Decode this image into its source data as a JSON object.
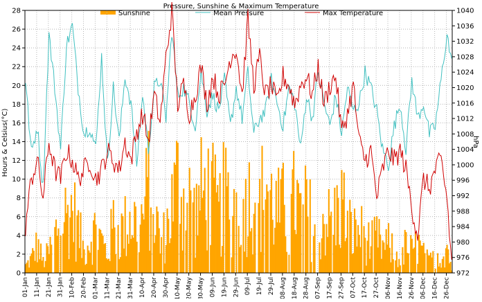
{
  "chart_data": {
    "type": "bar+line",
    "title": "Pressure, Sunshine & Maximum Temperature",
    "ylabel_left": "Hours & Celsius(°C)",
    "ylabel_right": "hPa",
    "ylim_left": [
      0,
      28
    ],
    "ylim_right": [
      972,
      1040
    ],
    "yticks_left": [
      "0",
      "2",
      "4",
      "6",
      "8",
      "10",
      "12",
      "14",
      "16",
      "18",
      "20",
      "22",
      "24",
      "26",
      "28"
    ],
    "yticks_right": [
      "972",
      "976",
      "980",
      "984",
      "988",
      "992",
      "996",
      "1000",
      "1004",
      "1008",
      "1012",
      "1016",
      "1020",
      "1024",
      "1028",
      "1032",
      "1036",
      "1040"
    ],
    "x_ticks": [
      "01-Jan",
      "11-Jan",
      "21-Jan",
      "31-Jan",
      "10-Feb",
      "20-Feb",
      "01-Mar",
      "11-Mar",
      "21-Mar",
      "31-Mar",
      "10-Apr",
      "20-Apr",
      "30-Apr",
      "10-May",
      "20-May",
      "30-May",
      "09-Jun",
      "19-Jun",
      "29-Jun",
      "09-Jul",
      "19-Jul",
      "29-Jul",
      "08-Aug",
      "18-Aug",
      "28-Aug",
      "07-Sep",
      "17-Sep",
      "27-Sep",
      "07-Oct",
      "17-Oct",
      "27-Oct",
      "06-Nov",
      "16-Nov",
      "26-Nov",
      "06-Dec",
      "16-Dec",
      "26-Dec"
    ],
    "n_days": 365,
    "grid": true,
    "legend": "top",
    "colors": {
      "sunshine": "#ffa500",
      "pressure": "#40c0c0",
      "temperature": "#d00000",
      "grid": "#b4b4b4"
    },
    "series": [
      {
        "name": "Sunshine",
        "axis": "left",
        "kind": "bar",
        "unit": "hours",
        "anchor_day": [
          0,
          5,
          10,
          15,
          20,
          25,
          30,
          35,
          40,
          45,
          50,
          55,
          60,
          65,
          70,
          75,
          80,
          85,
          90,
          95,
          100,
          105,
          110,
          115,
          120,
          125,
          130,
          135,
          140,
          145,
          150,
          155,
          160,
          165,
          170,
          175,
          180,
          185,
          190,
          195,
          200,
          205,
          210,
          215,
          220,
          225,
          230,
          235,
          240,
          245,
          250,
          255,
          260,
          265,
          270,
          275,
          280,
          285,
          290,
          295,
          300,
          305,
          310,
          315,
          320,
          325,
          330,
          335,
          340,
          345,
          350,
          355,
          360,
          364
        ],
        "anchor_value": [
          1.0,
          2.0,
          4.0,
          1.5,
          3.0,
          5.0,
          8.8,
          8.0,
          9.0,
          6.0,
          3.0,
          5.0,
          6.0,
          4.5,
          2.5,
          7.0,
          5.5,
          6.5,
          8.0,
          7.0,
          7.5,
          12.5,
          9.0,
          4.0,
          6.0,
          9.5,
          13.0,
          10.0,
          10.0,
          8.0,
          11.0,
          11.5,
          10.5,
          8.0,
          11.0,
          9.0,
          10.0,
          11.0,
          10.0,
          12.0,
          9.0,
          13.5,
          10.0,
          8.5,
          9.0,
          6.0,
          11.0,
          8.0,
          9.0,
          7.0,
          5.0,
          8.0,
          7.0,
          8.0,
          10.0,
          7.0,
          5.5,
          6.0,
          5.0,
          4.0,
          5.0,
          3.5,
          4.0,
          3.0,
          2.0,
          4.0,
          3.0,
          4.0,
          2.5,
          1.5,
          3.0,
          2.0,
          4.0,
          0.5
        ]
      },
      {
        "name": "Mean Pressure",
        "axis": "right",
        "kind": "line",
        "unit": "hPa",
        "anchor_day": [
          0,
          5,
          10,
          15,
          20,
          25,
          30,
          35,
          40,
          45,
          50,
          55,
          60,
          65,
          70,
          75,
          80,
          85,
          90,
          95,
          100,
          105,
          110,
          115,
          120,
          125,
          130,
          135,
          140,
          145,
          150,
          155,
          160,
          165,
          170,
          175,
          180,
          185,
          190,
          195,
          200,
          205,
          210,
          215,
          220,
          225,
          230,
          235,
          240,
          245,
          250,
          255,
          260,
          265,
          270,
          275,
          280,
          285,
          290,
          295,
          300,
          305,
          310,
          315,
          320,
          325,
          330,
          335,
          340,
          345,
          350,
          355,
          360,
          364
        ],
        "anchor_value": [
          1022,
          1003,
          1010,
          994,
          1034,
          1020,
          1004,
          1031,
          1036,
          1020,
          1008,
          1010,
          1004,
          1028,
          1000,
          1020,
          1006,
          1023,
          1016,
          1000,
          1018,
          1004,
          1020,
          1022,
          1012,
          1035,
          1018,
          1020,
          1016,
          1010,
          1024,
          1014,
          1018,
          1014,
          1022,
          1010,
          1020,
          1012,
          1024,
          1008,
          1012,
          1014,
          1022,
          1016,
          1010,
          1020,
          1016,
          1004,
          1018,
          1012,
          1024,
          1016,
          1010,
          1018,
          1008,
          1020,
          1014,
          1016,
          1024,
          1020,
          1014,
          1004,
          1000,
          1010,
          1016,
          1004,
          1022,
          1012,
          1016,
          1008,
          1010,
          1022,
          1034,
          1026
        ]
      },
      {
        "name": "Max Temperature",
        "axis": "left",
        "kind": "line",
        "unit": "°C",
        "anchor_day": [
          0,
          5,
          10,
          15,
          20,
          25,
          30,
          35,
          40,
          45,
          50,
          55,
          60,
          65,
          70,
          75,
          80,
          85,
          90,
          95,
          100,
          105,
          110,
          115,
          120,
          125,
          130,
          135,
          140,
          145,
          150,
          155,
          160,
          165,
          170,
          175,
          180,
          185,
          190,
          195,
          200,
          205,
          210,
          215,
          220,
          225,
          230,
          235,
          240,
          245,
          250,
          255,
          260,
          265,
          270,
          275,
          280,
          285,
          290,
          295,
          300,
          305,
          310,
          315,
          320,
          325,
          330,
          335,
          340,
          345,
          350,
          355,
          360,
          364
        ],
        "anchor_value": [
          5.0,
          10.0,
          12.0,
          8.0,
          14.0,
          11.0,
          10.0,
          13.0,
          12.0,
          10.0,
          11.0,
          12.0,
          10.0,
          11.0,
          13.0,
          12.0,
          11.0,
          14.0,
          12.0,
          15.0,
          17.0,
          14.0,
          19.0,
          16.0,
          23.0,
          28.0,
          18.0,
          20.0,
          17.0,
          19.0,
          22.0,
          18.0,
          21.0,
          19.0,
          20.0,
          23.0,
          24.0,
          19.0,
          27.0,
          20.0,
          23.0,
          19.0,
          20.0,
          18.0,
          21.0,
          20.0,
          18.0,
          20.0,
          21.0,
          19.0,
          22.0,
          18.0,
          20.0,
          21.0,
          15.0,
          17.0,
          20.0,
          14.0,
          12.0,
          13.0,
          8.0,
          11.0,
          13.0,
          12.0,
          13.0,
          11.0,
          7.0,
          4.0,
          10.0,
          9.0,
          11.0,
          12.0,
          8.0,
          1.0
        ]
      }
    ]
  }
}
